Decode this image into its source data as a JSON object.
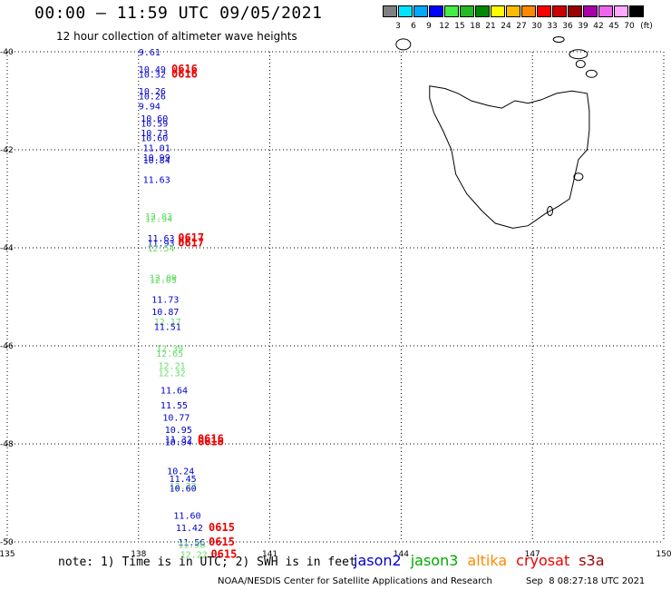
{
  "title": "00:00 – 11:59 UTC 09/05/2021",
  "subtitle": "12 hour collection of altimeter wave heights",
  "colorbar": {
    "unit": "(ft)",
    "ticks": [
      "3",
      "6",
      "9",
      "12",
      "15",
      "18",
      "21",
      "24",
      "27",
      "30",
      "33",
      "36",
      "39",
      "42",
      "45",
      "70"
    ],
    "colors": [
      "#808080",
      "#00e5ff",
      "#00a8ff",
      "#0000ff",
      "#44ee44",
      "#22bb22",
      "#008800",
      "#ffff00",
      "#ffbb00",
      "#ff8800",
      "#ff0000",
      "#cc0000",
      "#990000",
      "#aa00aa",
      "#ee66ee",
      "#ffaaff",
      "#000000"
    ]
  },
  "axes": {
    "lat_labels": [
      "-40",
      "-42",
      "-44",
      "-46",
      "-48",
      "-50"
    ],
    "lon_labels": [
      "135",
      "138",
      "141",
      "144",
      "147",
      "150"
    ]
  },
  "map_extent": {
    "lon": [
      135,
      150
    ],
    "lat": [
      -50,
      -40
    ]
  },
  "coastline": "Tasmania",
  "observations": [
    {
      "text": "9.61",
      "lon": 138.0,
      "lat": -40.0,
      "color": "#0000cc"
    },
    {
      "text": "10.49",
      "lon": 138.0,
      "lat": -40.35,
      "color": "#0000cc"
    },
    {
      "text": "10.32",
      "lon": 138.0,
      "lat": -40.45,
      "color": "#0000cc"
    },
    {
      "text": "0616",
      "lon": 138.75,
      "lat": -40.35,
      "color": "#ee0000",
      "time": true
    },
    {
      "text": "0616",
      "lon": 138.75,
      "lat": -40.45,
      "color": "#ee0000",
      "time": true
    },
    {
      "text": "10.26",
      "lon": 138.0,
      "lat": -40.8,
      "color": "#0000cc"
    },
    {
      "text": "10.26",
      "lon": 138.0,
      "lat": -40.9,
      "color": "#0000cc"
    },
    {
      "text": "9.94",
      "lon": 138.0,
      "lat": -41.1,
      "color": "#0000cc"
    },
    {
      "text": "10.60",
      "lon": 138.05,
      "lat": -41.35,
      "color": "#0000cc"
    },
    {
      "text": "10.59",
      "lon": 138.05,
      "lat": -41.45,
      "color": "#0000cc"
    },
    {
      "text": "10.73",
      "lon": 138.05,
      "lat": -41.65,
      "color": "#0000cc"
    },
    {
      "text": "10.60",
      "lon": 138.05,
      "lat": -41.75,
      "color": "#0000cc"
    },
    {
      "text": "11.01",
      "lon": 138.1,
      "lat": -41.95,
      "color": "#0000cc"
    },
    {
      "text": "10.99",
      "lon": 138.1,
      "lat": -42.15,
      "color": "#0000cc"
    },
    {
      "text": "10.84",
      "lon": 138.1,
      "lat": -42.2,
      "color": "#0000cc"
    },
    {
      "text": "11.63",
      "lon": 138.1,
      "lat": -42.6,
      "color": "#0000cc"
    },
    {
      "text": "12.83",
      "lon": 138.15,
      "lat": -43.35,
      "color": "#66dd66"
    },
    {
      "text": "12.94",
      "lon": 138.15,
      "lat": -43.4,
      "color": "#66dd66"
    },
    {
      "text": "11.63",
      "lon": 138.2,
      "lat": -43.8,
      "color": "#0000cc"
    },
    {
      "text": "11.93",
      "lon": 138.2,
      "lat": -43.9,
      "color": "#0000cc"
    },
    {
      "text": "12.54",
      "lon": 138.2,
      "lat": -44.0,
      "color": "#66dd66"
    },
    {
      "text": "0617",
      "lon": 138.9,
      "lat": -43.8,
      "color": "#ee0000",
      "time": true
    },
    {
      "text": "0617",
      "lon": 138.9,
      "lat": -43.9,
      "color": "#ee0000",
      "time": true
    },
    {
      "text": "12.09",
      "lon": 138.25,
      "lat": -44.6,
      "color": "#66dd66"
    },
    {
      "text": "12.05",
      "lon": 138.25,
      "lat": -44.65,
      "color": "#66dd66"
    },
    {
      "text": "11.73",
      "lon": 138.3,
      "lat": -45.05,
      "color": "#0000cc"
    },
    {
      "text": "10.87",
      "lon": 138.3,
      "lat": -45.3,
      "color": "#0000cc"
    },
    {
      "text": "12.17",
      "lon": 138.35,
      "lat": -45.5,
      "color": "#66dd66"
    },
    {
      "text": "11.51",
      "lon": 138.35,
      "lat": -45.6,
      "color": "#0000cc"
    },
    {
      "text": "12.39",
      "lon": 138.4,
      "lat": -46.05,
      "color": "#66dd66"
    },
    {
      "text": "12.65",
      "lon": 138.4,
      "lat": -46.15,
      "color": "#66dd66"
    },
    {
      "text": "12.21",
      "lon": 138.45,
      "lat": -46.4,
      "color": "#66dd66"
    },
    {
      "text": "12.32",
      "lon": 138.45,
      "lat": -46.55,
      "color": "#66dd66"
    },
    {
      "text": "11.64",
      "lon": 138.5,
      "lat": -46.9,
      "color": "#0000cc"
    },
    {
      "text": "11.55",
      "lon": 138.5,
      "lat": -47.2,
      "color": "#0000cc"
    },
    {
      "text": "10.77",
      "lon": 138.55,
      "lat": -47.45,
      "color": "#0000cc"
    },
    {
      "text": "10.95",
      "lon": 138.6,
      "lat": -47.7,
      "color": "#0000cc"
    },
    {
      "text": "11.32",
      "lon": 138.6,
      "lat": -47.9,
      "color": "#0000cc"
    },
    {
      "text": "10.94",
      "lon": 138.6,
      "lat": -47.95,
      "color": "#0000cc"
    },
    {
      "text": "0616",
      "lon": 139.35,
      "lat": -47.9,
      "color": "#ee0000",
      "time": true
    },
    {
      "text": "0616",
      "lon": 139.35,
      "lat": -47.95,
      "color": "#ee0000",
      "time": true
    },
    {
      "text": "10.24",
      "lon": 138.65,
      "lat": -48.55,
      "color": "#0000cc"
    },
    {
      "text": "11.45",
      "lon": 138.7,
      "lat": -48.7,
      "color": "#0000cc"
    },
    {
      "text": "12.33",
      "lon": 138.7,
      "lat": -48.85,
      "color": "#66dd66"
    },
    {
      "text": "10.60",
      "lon": 138.7,
      "lat": -48.9,
      "color": "#0000cc"
    },
    {
      "text": "11.60",
      "lon": 138.8,
      "lat": -49.45,
      "color": "#0000cc"
    },
    {
      "text": "11.42",
      "lon": 138.85,
      "lat": -49.7,
      "color": "#0000cc"
    },
    {
      "text": "0615",
      "lon": 139.6,
      "lat": -49.7,
      "color": "#ee0000",
      "time": true
    },
    {
      "text": "11.56",
      "lon": 138.9,
      "lat": -50.0,
      "color": "#0000cc"
    },
    {
      "text": "11.58",
      "lon": 138.9,
      "lat": -50.05,
      "color": "#66dd66"
    },
    {
      "text": "0615",
      "lon": 139.6,
      "lat": -50.0,
      "color": "#ee0000",
      "time": true
    },
    {
      "text": "12.22",
      "lon": 138.95,
      "lat": -50.25,
      "color": "#66dd66"
    },
    {
      "text": "0615",
      "lon": 139.65,
      "lat": -50.25,
      "color": "#ee0000",
      "time": true
    }
  ],
  "footer_note": "note: 1) Time is in UTC; 2) SWH is in feet",
  "legend": [
    {
      "name": "jason2",
      "color": "#0000cc"
    },
    {
      "name": "jason3",
      "color": "#00aa00"
    },
    {
      "name": "altika",
      "color": "#ff8800"
    },
    {
      "name": "cryosat",
      "color": "#ee0000"
    },
    {
      "name": "s3a",
      "color": "#990000"
    }
  ],
  "credit": "NOAA/NESDIS Center for Satellite Applications and Research",
  "credit_time": "Sep  8 08:27:18 UTC 2021"
}
